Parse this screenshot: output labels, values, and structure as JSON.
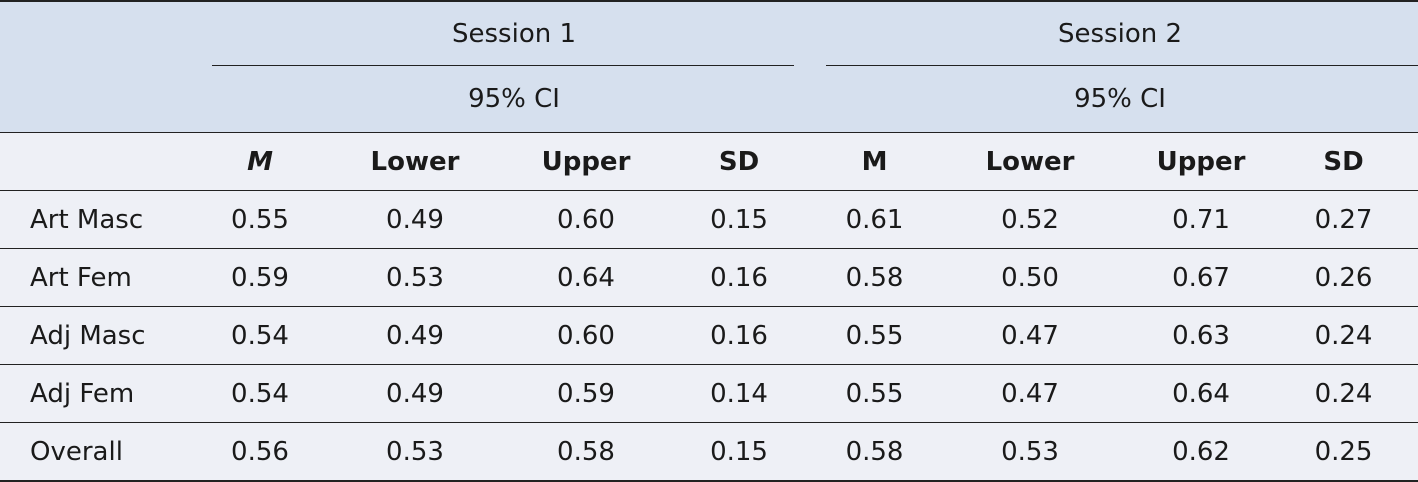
{
  "header": {
    "session1": "Session 1",
    "session2": "Session 2",
    "ci1": "95% CI",
    "ci2": "95% CI"
  },
  "columns": {
    "s1": [
      "M",
      "Lower",
      "Upper",
      "SD"
    ],
    "s2": [
      "M",
      "Lower",
      "Upper",
      "SD"
    ]
  },
  "rows": [
    {
      "label": "Art Masc",
      "values": [
        "0.55",
        "0.49",
        "0.60",
        "0.15",
        "0.61",
        "0.52",
        "0.71",
        "0.27"
      ]
    },
    {
      "label": "Art Fem",
      "values": [
        "0.59",
        "0.53",
        "0.64",
        "0.16",
        "0.58",
        "0.50",
        "0.67",
        "0.26"
      ]
    },
    {
      "label": "Adj Masc",
      "values": [
        "0.54",
        "0.49",
        "0.60",
        "0.16",
        "0.55",
        "0.47",
        "0.63",
        "0.24"
      ]
    },
    {
      "label": "Adj Fem",
      "values": [
        "0.54",
        "0.49",
        "0.59",
        "0.14",
        "0.55",
        "0.47",
        "0.64",
        "0.24"
      ]
    },
    {
      "label": "Overall",
      "values": [
        "0.56",
        "0.53",
        "0.58",
        "0.15",
        "0.58",
        "0.53",
        "0.62",
        "0.25"
      ]
    }
  ]
}
